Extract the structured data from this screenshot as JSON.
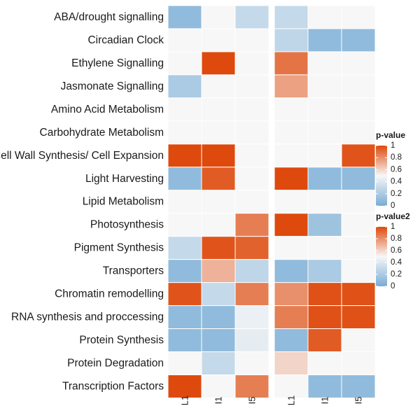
{
  "chart_data": {
    "type": "heatmap",
    "rows": [
      "ABA/drought signalling",
      "Circadian Clock",
      "Ethylene Signalling",
      "Jasmonate Signalling",
      "Amino Acid Metabolism",
      "Carbohydrate Metabolism",
      "Cell Wall Synthesis/ Cell Expansion",
      "Light Harvesting",
      "Lipid Metabolism",
      "Photosynthesis",
      "Pigment Synthesis",
      "Transporters",
      "Chromatin remodelling",
      "RNA synthesis and proccessing",
      "Protein Synthesis",
      "Protein Degradation",
      "Transcription Factors"
    ],
    "panels": [
      {
        "name": "p-value",
        "columns": [
          "L1",
          "I1",
          "I5"
        ],
        "values": [
          [
            0.1,
            0.5,
            0.3
          ],
          [
            0.5,
            0.5,
            0.5
          ],
          [
            0.5,
            1.0,
            0.5
          ],
          [
            0.2,
            0.5,
            0.5
          ],
          [
            0.5,
            0.5,
            0.5
          ],
          [
            0.5,
            0.5,
            0.5
          ],
          [
            1.0,
            1.0,
            0.5
          ],
          [
            0.1,
            0.95,
            0.5
          ],
          [
            0.5,
            0.5,
            0.5
          ],
          [
            0.5,
            0.5,
            0.85
          ],
          [
            0.3,
            0.97,
            0.93
          ],
          [
            0.1,
            0.7,
            0.28
          ],
          [
            0.97,
            0.3,
            0.85
          ],
          [
            0.1,
            0.1,
            0.45
          ],
          [
            0.1,
            0.1,
            0.43
          ],
          [
            0.5,
            0.3,
            0.5
          ],
          [
            1.0,
            0.5,
            0.85
          ]
        ]
      },
      {
        "name": "p-value2",
        "columns": [
          "L1",
          "I1",
          "I5"
        ],
        "values": [
          [
            0.3,
            0.5,
            0.5
          ],
          [
            0.28,
            0.1,
            0.1
          ],
          [
            0.88,
            0.5,
            0.5
          ],
          [
            0.75,
            0.5,
            0.5
          ],
          [
            0.5,
            0.5,
            0.5
          ],
          [
            0.5,
            0.5,
            0.5
          ],
          [
            0.5,
            0.5,
            0.97
          ],
          [
            1.0,
            0.1,
            0.1
          ],
          [
            0.5,
            0.5,
            0.5
          ],
          [
            1.0,
            0.15,
            0.5
          ],
          [
            0.5,
            0.5,
            0.5
          ],
          [
            0.1,
            0.2,
            0.5
          ],
          [
            0.8,
            0.98,
            0.98
          ],
          [
            0.85,
            0.98,
            0.98
          ],
          [
            0.1,
            0.95,
            0.5
          ],
          [
            0.6,
            0.5,
            0.5
          ],
          [
            0.5,
            0.1,
            0.1
          ]
        ]
      }
    ],
    "color_scale": {
      "low": "#78acd5",
      "mid": "#f7f7f7",
      "high": "#de4a0d",
      "domain": [
        0,
        1
      ]
    },
    "legends": [
      {
        "title": "p-value",
        "ticks": [
          "1",
          "0.8",
          "0.6",
          "0.4",
          "0.2",
          "0"
        ]
      },
      {
        "title": "p-value2",
        "ticks": [
          "1",
          "0.8",
          "0.6",
          "0.4",
          "0.2",
          "0"
        ]
      }
    ]
  }
}
